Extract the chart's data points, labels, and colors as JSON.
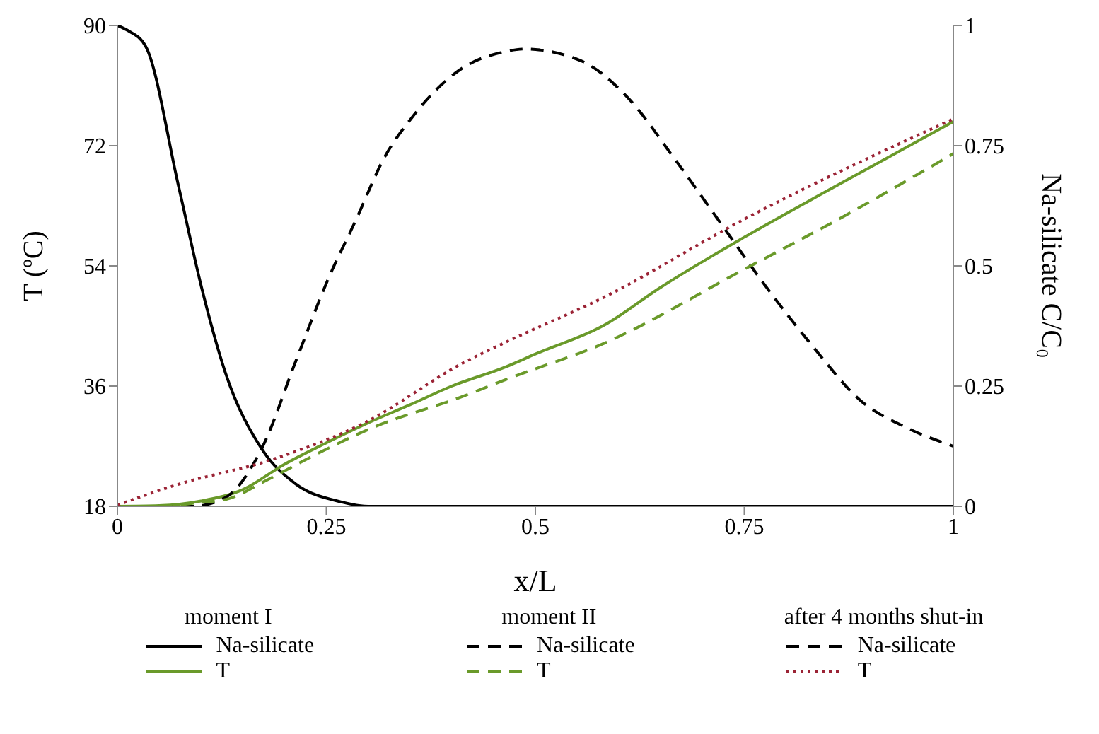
{
  "chart_data": {
    "type": "line",
    "xlabel": "x/L",
    "ylabel": "T (ºC)",
    "y2label": "Na-silicate C/C₀",
    "xlim": [
      0,
      1
    ],
    "xticks": [
      0,
      0.25,
      0.5,
      0.75,
      1
    ],
    "ylim": [
      18,
      90
    ],
    "yticks": [
      18,
      36,
      54,
      72,
      90
    ],
    "y2lim": [
      0,
      1
    ],
    "y2ticks": [
      0,
      0.25,
      0.5,
      0.75,
      1
    ],
    "grid": false,
    "legend": "bottom",
    "marker": "none",
    "annotations": [
      "moment I",
      "moment II",
      "after 4 months shut-in"
    ],
    "series": [
      {
        "name": "Na-silicate",
        "color": "#000000",
        "axis": "y2",
        "line_style": "solid",
        "x": [
          0,
          0.012,
          0.034,
          0.073,
          0.101,
          0.129,
          0.174,
          0.213,
          0.268,
          0.3,
          0.4,
          0.6,
          0.8,
          1
        ],
        "values": [
          1,
          0.99,
          0.956,
          0.667,
          0.453,
          0.279,
          0.116,
          0.047,
          0.009,
          0,
          0,
          0,
          0,
          0
        ]
      },
      {
        "name": "T",
        "color": "#6a9a2a",
        "axis": "y",
        "line_style": "solid",
        "x": [
          0,
          0.05,
          0.1,
          0.15,
          0.2,
          0.25,
          0.3,
          0.35,
          0.4,
          0.465,
          0.5,
          0.582,
          0.65,
          0.75,
          0.85,
          1
        ],
        "values": [
          18,
          18.1,
          18.8,
          20.5,
          24.3,
          27.5,
          30.5,
          33.2,
          36,
          38.9,
          40.8,
          45.1,
          50.8,
          58.3,
          65.3,
          75.6
        ]
      },
      {
        "name": "Na-silicate",
        "color": "#000000",
        "axis": "y2",
        "line_style": "dashed",
        "x": [
          0,
          0.09,
          0.129,
          0.174,
          0.213,
          0.252,
          0.286,
          0.319,
          0.353,
          0.409,
          0.465,
          0.487,
          0.554,
          0.611,
          0.666,
          0.722,
          0.778,
          0.834,
          0.889,
          0.946,
          1
        ],
        "values": [
          0,
          0,
          0.018,
          0.125,
          0.3,
          0.472,
          0.598,
          0.724,
          0.81,
          0.907,
          0.946,
          0.951,
          0.927,
          0.849,
          0.724,
          0.588,
          0.452,
          0.328,
          0.22,
          0.162,
          0.125
        ]
      },
      {
        "name": "T",
        "color": "#6a9a2a",
        "axis": "y",
        "line_style": "dashed",
        "x": [
          0,
          0.05,
          0.1,
          0.129,
          0.18,
          0.241,
          0.3,
          0.414,
          0.465,
          0.582,
          0.75,
          0.87,
          1
        ],
        "values": [
          18,
          18,
          18.6,
          19,
          22,
          26,
          29.5,
          34.5,
          37,
          42.4,
          53.5,
          61.5,
          70.8
        ]
      },
      {
        "name": "Na-silicate",
        "color": "#000000",
        "axis": "y2",
        "line_style": "dashed"
      },
      {
        "name": "T",
        "color": "#9b2335",
        "axis": "y",
        "line_style": "dotted",
        "x": [
          0,
          0.073,
          0.185,
          0.297,
          0.414,
          0.465,
          0.582,
          0.75,
          1
        ],
        "values": [
          18.2,
          21.3,
          25,
          30.6,
          39.5,
          42.6,
          49.3,
          61,
          76
        ]
      }
    ]
  }
}
